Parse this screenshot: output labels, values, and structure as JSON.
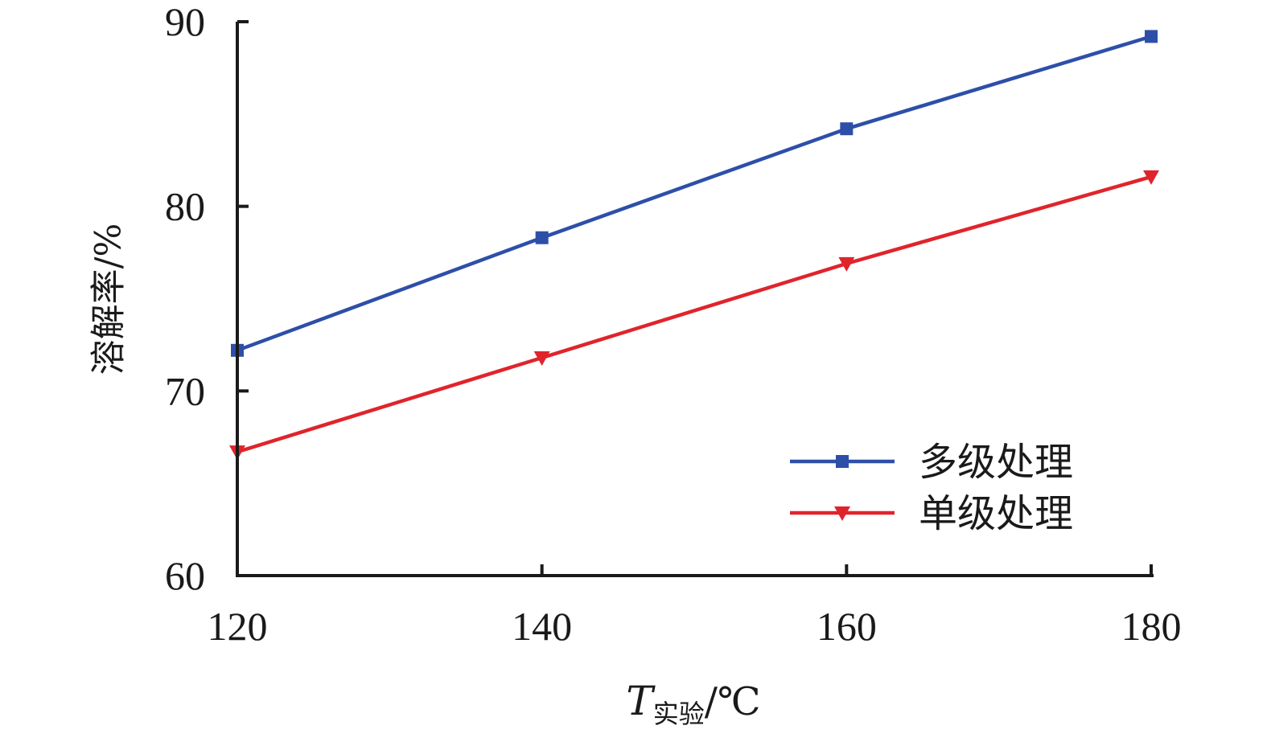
{
  "chart_data": {
    "type": "line",
    "x": [
      120,
      140,
      160,
      180
    ],
    "xlim": [
      120,
      180
    ],
    "ylim": [
      60,
      90
    ],
    "xticks": [
      "120",
      "140",
      "160",
      "180"
    ],
    "yticks": [
      "60",
      "70",
      "80",
      "90"
    ],
    "xlabel": {
      "main": "T",
      "sub": "实验",
      "unit": "/℃"
    },
    "ylabel": "溶解率/%",
    "grid": false,
    "legend_position": "bottom-right",
    "series": [
      {
        "name": "多级处理",
        "color": "#2d4fa8",
        "marker": "square",
        "values": [
          72.2,
          78.3,
          84.2,
          89.2
        ]
      },
      {
        "name": "单级处理",
        "color": "#e0242c",
        "marker": "triangle-down",
        "values": [
          66.7,
          71.8,
          76.9,
          81.6
        ]
      }
    ]
  }
}
